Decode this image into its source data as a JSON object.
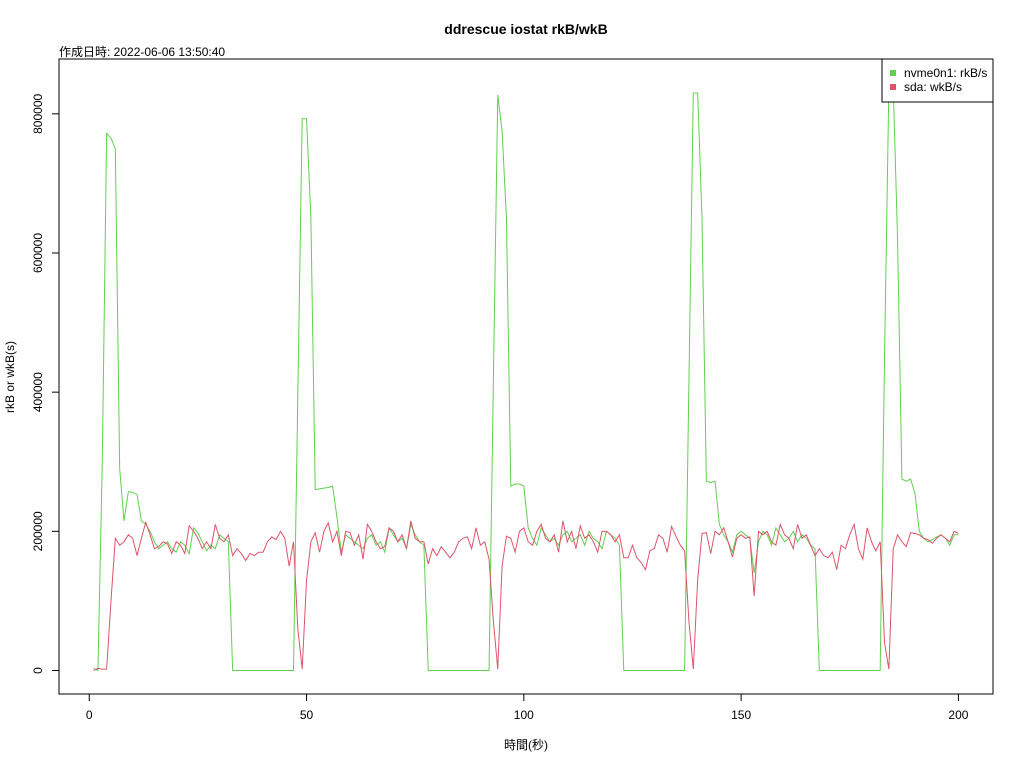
{
  "chart_data": {
    "type": "line",
    "title": "ddrescue iostat rkB/wkB",
    "subtitle": "作成日時: 2022-06-06 13:50:40",
    "x_label": "時間(秒)",
    "y_label": "rkB or wkB(s)",
    "x": [
      1,
      2,
      3,
      4,
      5,
      6,
      7,
      8,
      9,
      10,
      11,
      12,
      13,
      14,
      15,
      16,
      17,
      18,
      19,
      20,
      21,
      22,
      23,
      24,
      25,
      26,
      27,
      28,
      29,
      30,
      31,
      32,
      33,
      34,
      35,
      36,
      37,
      38,
      39,
      40,
      41,
      42,
      43,
      44,
      45,
      46,
      47,
      48,
      49,
      50,
      51,
      52,
      53,
      54,
      55,
      56,
      57,
      58,
      59,
      60,
      61,
      62,
      63,
      64,
      65,
      66,
      67,
      68,
      69,
      70,
      71,
      72,
      73,
      74,
      75,
      76,
      77,
      78,
      79,
      80,
      81,
      82,
      83,
      84,
      85,
      86,
      87,
      88,
      89,
      90,
      91,
      92,
      93,
      94,
      95,
      96,
      97,
      98,
      99,
      100,
      101,
      102,
      103,
      104,
      105,
      106,
      107,
      108,
      109,
      110,
      111,
      112,
      113,
      114,
      115,
      116,
      117,
      118,
      119,
      120,
      121,
      122,
      123,
      124,
      125,
      126,
      127,
      128,
      129,
      130,
      131,
      132,
      133,
      134,
      135,
      136,
      137,
      138,
      139,
      140,
      141,
      142,
      143,
      144,
      145,
      146,
      147,
      148,
      149,
      150,
      151,
      152,
      153,
      154,
      155,
      156,
      157,
      158,
      159,
      160,
      161,
      162,
      163,
      164,
      165,
      166,
      167,
      168,
      169,
      170,
      171,
      172,
      173,
      174,
      175,
      176,
      177,
      178,
      179,
      180,
      181,
      182,
      183,
      184,
      185,
      186,
      187,
      188,
      189,
      190,
      191,
      192,
      193,
      194,
      195,
      196,
      197,
      198,
      199,
      200
    ],
    "series": [
      {
        "name": "nvme0n1: rkB/s",
        "color": "#61D04F",
        "values": [
          3000,
          0,
          300000,
          772000,
          765000,
          750000,
          290000,
          215000,
          257000,
          256000,
          253000,
          215000,
          210000,
          200000,
          185000,
          175000,
          180000,
          185000,
          175000,
          170000,
          185000,
          180000,
          168000,
          205000,
          198000,
          185000,
          172000,
          180000,
          175000,
          195000,
          190000,
          185000,
          0,
          0,
          0,
          0,
          0,
          0,
          0,
          0,
          0,
          0,
          0,
          0,
          0,
          0,
          0,
          400000,
          793000,
          793000,
          650000,
          260000,
          261000,
          262000,
          263000,
          265000,
          220000,
          170000,
          195000,
          190000,
          185000,
          180000,
          175000,
          190000,
          195000,
          180000,
          185000,
          170000,
          205000,
          195000,
          185000,
          190000,
          175000,
          210000,
          195000,
          185000,
          180000,
          0,
          0,
          0,
          0,
          0,
          0,
          0,
          0,
          0,
          0,
          0,
          0,
          0,
          0,
          0,
          420000,
          827000,
          775000,
          650000,
          265000,
          268000,
          268000,
          265000,
          205000,
          190000,
          180000,
          205000,
          195000,
          185000,
          190000,
          180000,
          195000,
          200000,
          185000,
          190000,
          195000,
          180000,
          200000,
          190000,
          185000,
          175000,
          200000,
          195000,
          190000,
          180000,
          0,
          0,
          0,
          0,
          0,
          0,
          0,
          0,
          0,
          0,
          0,
          0,
          0,
          0,
          0,
          420000,
          830000,
          830000,
          650000,
          272000,
          270000,
          272000,
          210000,
          195000,
          185000,
          170000,
          195000,
          200000,
          195000,
          190000,
          140000,
          185000,
          200000,
          195000,
          180000,
          205000,
          195000,
          185000,
          190000,
          200000,
          185000,
          195000,
          190000,
          180000,
          175000,
          0,
          0,
          0,
          0,
          0,
          0,
          0,
          0,
          0,
          0,
          0,
          0,
          0,
          0,
          0,
          450000,
          840000,
          840000,
          620000,
          275000,
          272000,
          275000,
          255000,
          200000,
          190000,
          185000,
          188000,
          192000,
          195000,
          190000,
          180000,
          195000,
          195000
        ]
      },
      {
        "name": "sda: wkB/s",
        "color": "#DF536B",
        "values": [
          0,
          3000,
          2000,
          2000,
          100000,
          190000,
          180000,
          185000,
          195000,
          190000,
          165000,
          190000,
          213000,
          195000,
          175000,
          178000,
          185000,
          182000,
          168000,
          185000,
          180000,
          168000,
          208000,
          200000,
          190000,
          175000,
          185000,
          175000,
          210000,
          190000,
          185000,
          195000,
          165000,
          175000,
          168000,
          158000,
          168000,
          165000,
          170000,
          170000,
          185000,
          192000,
          188000,
          200000,
          190000,
          150000,
          185000,
          60000,
          2000,
          130000,
          185000,
          198000,
          170000,
          200000,
          212000,
          185000,
          200000,
          165000,
          200000,
          198000,
          180000,
          195000,
          160000,
          210000,
          200000,
          185000,
          175000,
          178000,
          205000,
          200000,
          185000,
          195000,
          175000,
          215000,
          190000,
          185000,
          185000,
          153000,
          175000,
          165000,
          178000,
          170000,
          162000,
          170000,
          185000,
          190000,
          192000,
          175000,
          205000,
          180000,
          185000,
          160000,
          70000,
          2000,
          150000,
          193000,
          190000,
          170000,
          200000,
          205000,
          185000,
          180000,
          200000,
          210000,
          190000,
          185000,
          195000,
          170000,
          215000,
          185000,
          200000,
          175000,
          208000,
          190000,
          195000,
          185000,
          170000,
          200000,
          200000,
          195000,
          185000,
          195000,
          162000,
          162000,
          180000,
          162000,
          155000,
          145000,
          172000,
          175000,
          195000,
          190000,
          170000,
          207000,
          193000,
          180000,
          172000,
          70000,
          2000,
          130000,
          197000,
          198000,
          168000,
          200000,
          195000,
          205000,
          185000,
          163000,
          190000,
          195000,
          190000,
          192000,
          107000,
          200000,
          195000,
          200000,
          185000,
          180000,
          210000,
          195000,
          190000,
          175000,
          210000,
          190000,
          195000,
          180000,
          165000,
          175000,
          165000,
          162000,
          170000,
          145000,
          180000,
          175000,
          195000,
          210000,
          175000,
          160000,
          205000,
          185000,
          172000,
          185000,
          40000,
          2000,
          175000,
          195000,
          185000,
          178000,
          198000,
          197000,
          195000,
          190000,
          188000,
          183000,
          190000,
          195000,
          190000,
          185000,
          200000,
          197000
        ]
      }
    ],
    "xlim": [
      -6.96,
      207.96
    ],
    "xticks": [
      0,
      50,
      100,
      150,
      200
    ],
    "ylim": [
      -33800,
      878800
    ],
    "yticks": [
      0,
      200000,
      400000,
      600000,
      800000
    ],
    "legend": "top-right"
  }
}
